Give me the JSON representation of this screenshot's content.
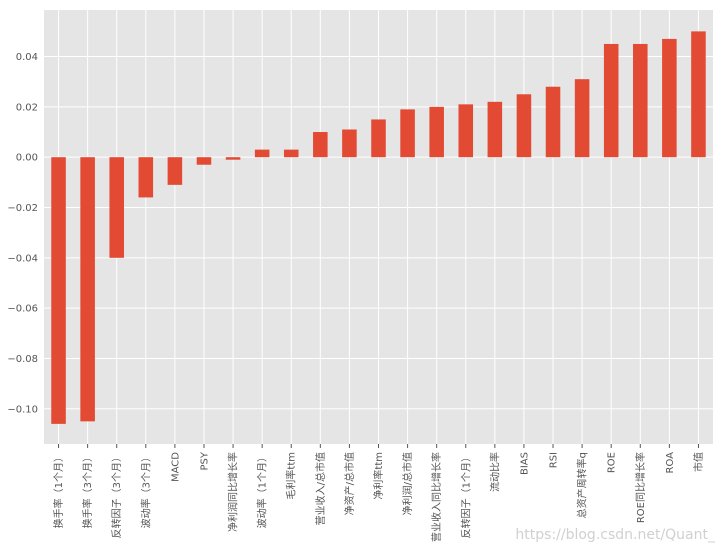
{
  "chart_data": {
    "type": "bar",
    "categories": [
      "换手率（1个月）",
      "换手率（3个月）",
      "反转因子（3个月）",
      "波动率（3个月）",
      "MACD",
      "PSY",
      "净利润同比增长率",
      "波动率（1个月）",
      "毛利率ttm",
      "营业收入/总市值",
      "净资产/总市值",
      "净利率ttm",
      "净利润/总市值",
      "营业收入同比增长率",
      "反转因子（1个月）",
      "流动比率",
      "BIAS",
      "RSI",
      "总资产周转率q",
      "ROE",
      "ROE同比增长率",
      "ROA",
      "市值"
    ],
    "values": [
      -0.106,
      -0.105,
      -0.04,
      -0.016,
      -0.011,
      -0.003,
      -0.001,
      0.003,
      0.003,
      0.01,
      0.011,
      0.015,
      0.019,
      0.02,
      0.021,
      0.022,
      0.025,
      0.028,
      0.031,
      0.045,
      0.045,
      0.047,
      0.05
    ],
    "ylim": [
      -0.114,
      0.0585
    ],
    "yticks": [
      "0.04",
      "0.02",
      "0.00",
      "−0.02",
      "−0.04",
      "−0.06",
      "−0.08",
      "−0.10"
    ],
    "ytick_values": [
      0.04,
      0.02,
      0.0,
      -0.02,
      -0.04,
      -0.06,
      -0.08,
      -0.1
    ],
    "grid": true,
    "bar_color": "#E24A33",
    "background_color": "#E5E5E5"
  },
  "watermark": "https://blog.csdn.net/Quant_"
}
